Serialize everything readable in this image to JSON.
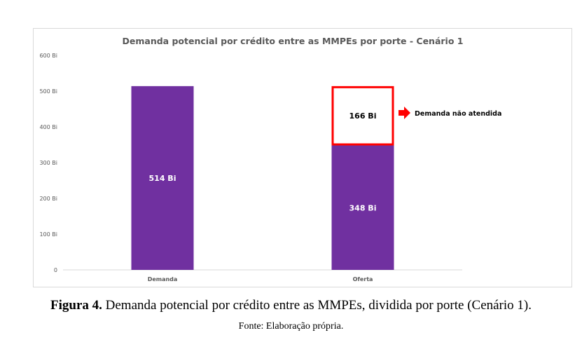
{
  "chart_data": {
    "type": "bar",
    "stacked": true,
    "title": "Demanda potencial por crédito entre as MMPEs por porte - Cenário 1",
    "categories": [
      "Demanda",
      "Oferta"
    ],
    "series": [
      {
        "name": "Valor",
        "values": [
          514,
          348
        ],
        "labels": [
          "514 Bi",
          "348 Bi"
        ],
        "color": "#7030a0"
      },
      {
        "name": "Demanda não atendida",
        "values": [
          0,
          166
        ],
        "labels": [
          "",
          "166 Bi"
        ],
        "color": "#ffffff",
        "border": "#ff0000"
      }
    ],
    "ylim": [
      0,
      600
    ],
    "yticks": [
      0,
      100,
      200,
      300,
      400,
      500,
      600
    ],
    "ytick_labels": [
      "0",
      "100 Bi",
      "200 Bi",
      "300 Bi",
      "400 Bi",
      "500 Bi",
      "600 Bi"
    ],
    "annotation": "Demanda não atendida",
    "grid": false
  },
  "caption": {
    "label": "Figura 4.",
    "text": " Demanda potencial por crédito entre as MMPEs, dividida por porte (Cenário 1)."
  },
  "source": "Fonte: Elaboração própria."
}
